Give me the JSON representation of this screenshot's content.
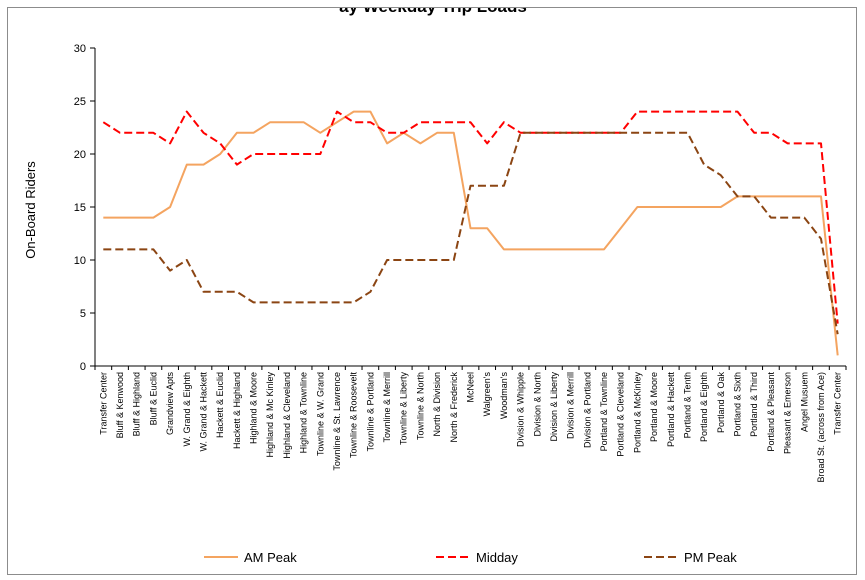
{
  "chart_data": {
    "type": "line",
    "title": "ay Weekday Trip Loads",
    "xlabel": "",
    "ylabel": "On-Board Riders",
    "ylim": [
      0,
      30
    ],
    "yticks": [
      0,
      5,
      10,
      15,
      20,
      25,
      30
    ],
    "grid": false,
    "legend_position": "bottom",
    "categories": [
      "Transfer Center",
      "Bluff & Kenwood",
      "Bluff & Highland",
      "Bluff & Euclid",
      "Grandview Apts",
      "W. Grand & Eighth",
      "W. Grand & Hackett",
      "Hackett & Euclid",
      "Hackett & Highland",
      "Highland & Moore",
      "Highland & Mc Kinley",
      "Highland & Cleveland",
      "Highland & Townline",
      "Townline & W. Grand",
      "Townline & St. Lawrence",
      "Townline & Roosevelt",
      "Townline & Portland",
      "Townline & Merrill",
      "Townline & Liberty",
      "Townline & North",
      "North & Division",
      "North & Frederick",
      "McNeel",
      "Walgreen's",
      "Woodman's",
      "Division & Whipple",
      "Division & North",
      "Division & Liberty",
      "Division & Merrill",
      "Division & Portland",
      "Portland & Townline",
      "Portland & Cleveland",
      "Portland & McKinley",
      "Portland & Moore",
      "Portland & Hackett",
      "Portland & Tenth",
      "Portland & Eighth",
      "Portland & Oak",
      "Portland & Sixth",
      "Portland & Third",
      "Portland & Pleasant",
      "Pleasant & Emerson",
      "Angel Musuem",
      "Broad St. (across from Ace)",
      "Transfer Center"
    ],
    "series": [
      {
        "name": "AM Peak",
        "color": "#f4a460",
        "dash": "solid",
        "values": [
          14,
          14,
          14,
          14,
          15,
          19,
          19,
          20,
          22,
          22,
          23,
          23,
          23,
          22,
          23,
          24,
          24,
          21,
          22,
          21,
          22,
          22,
          13,
          13,
          11,
          11,
          11,
          11,
          11,
          11,
          11,
          13,
          15,
          15,
          15,
          15,
          15,
          15,
          16,
          16,
          16,
          16,
          16,
          16,
          1
        ]
      },
      {
        "name": "Midday",
        "color": "#ff0000",
        "dash": "dashed",
        "values": [
          23,
          22,
          22,
          22,
          21,
          24,
          22,
          21,
          19,
          20,
          20,
          20,
          20,
          20,
          24,
          23,
          23,
          22,
          22,
          23,
          23,
          23,
          23,
          21,
          23,
          22,
          22,
          22,
          22,
          22,
          22,
          22,
          24,
          24,
          24,
          24,
          24,
          24,
          24,
          22,
          22,
          21,
          21,
          21,
          4
        ]
      },
      {
        "name": "PM Peak",
        "color": "#8b4513",
        "dash": "dashed",
        "values": [
          11,
          11,
          11,
          11,
          9,
          10,
          7,
          7,
          7,
          6,
          6,
          6,
          6,
          6,
          6,
          6,
          7,
          10,
          10,
          10,
          10,
          10,
          17,
          17,
          17,
          22,
          22,
          22,
          22,
          22,
          22,
          22,
          22,
          22,
          22,
          22,
          19,
          18,
          16,
          16,
          14,
          14,
          14,
          12,
          3
        ]
      }
    ]
  }
}
